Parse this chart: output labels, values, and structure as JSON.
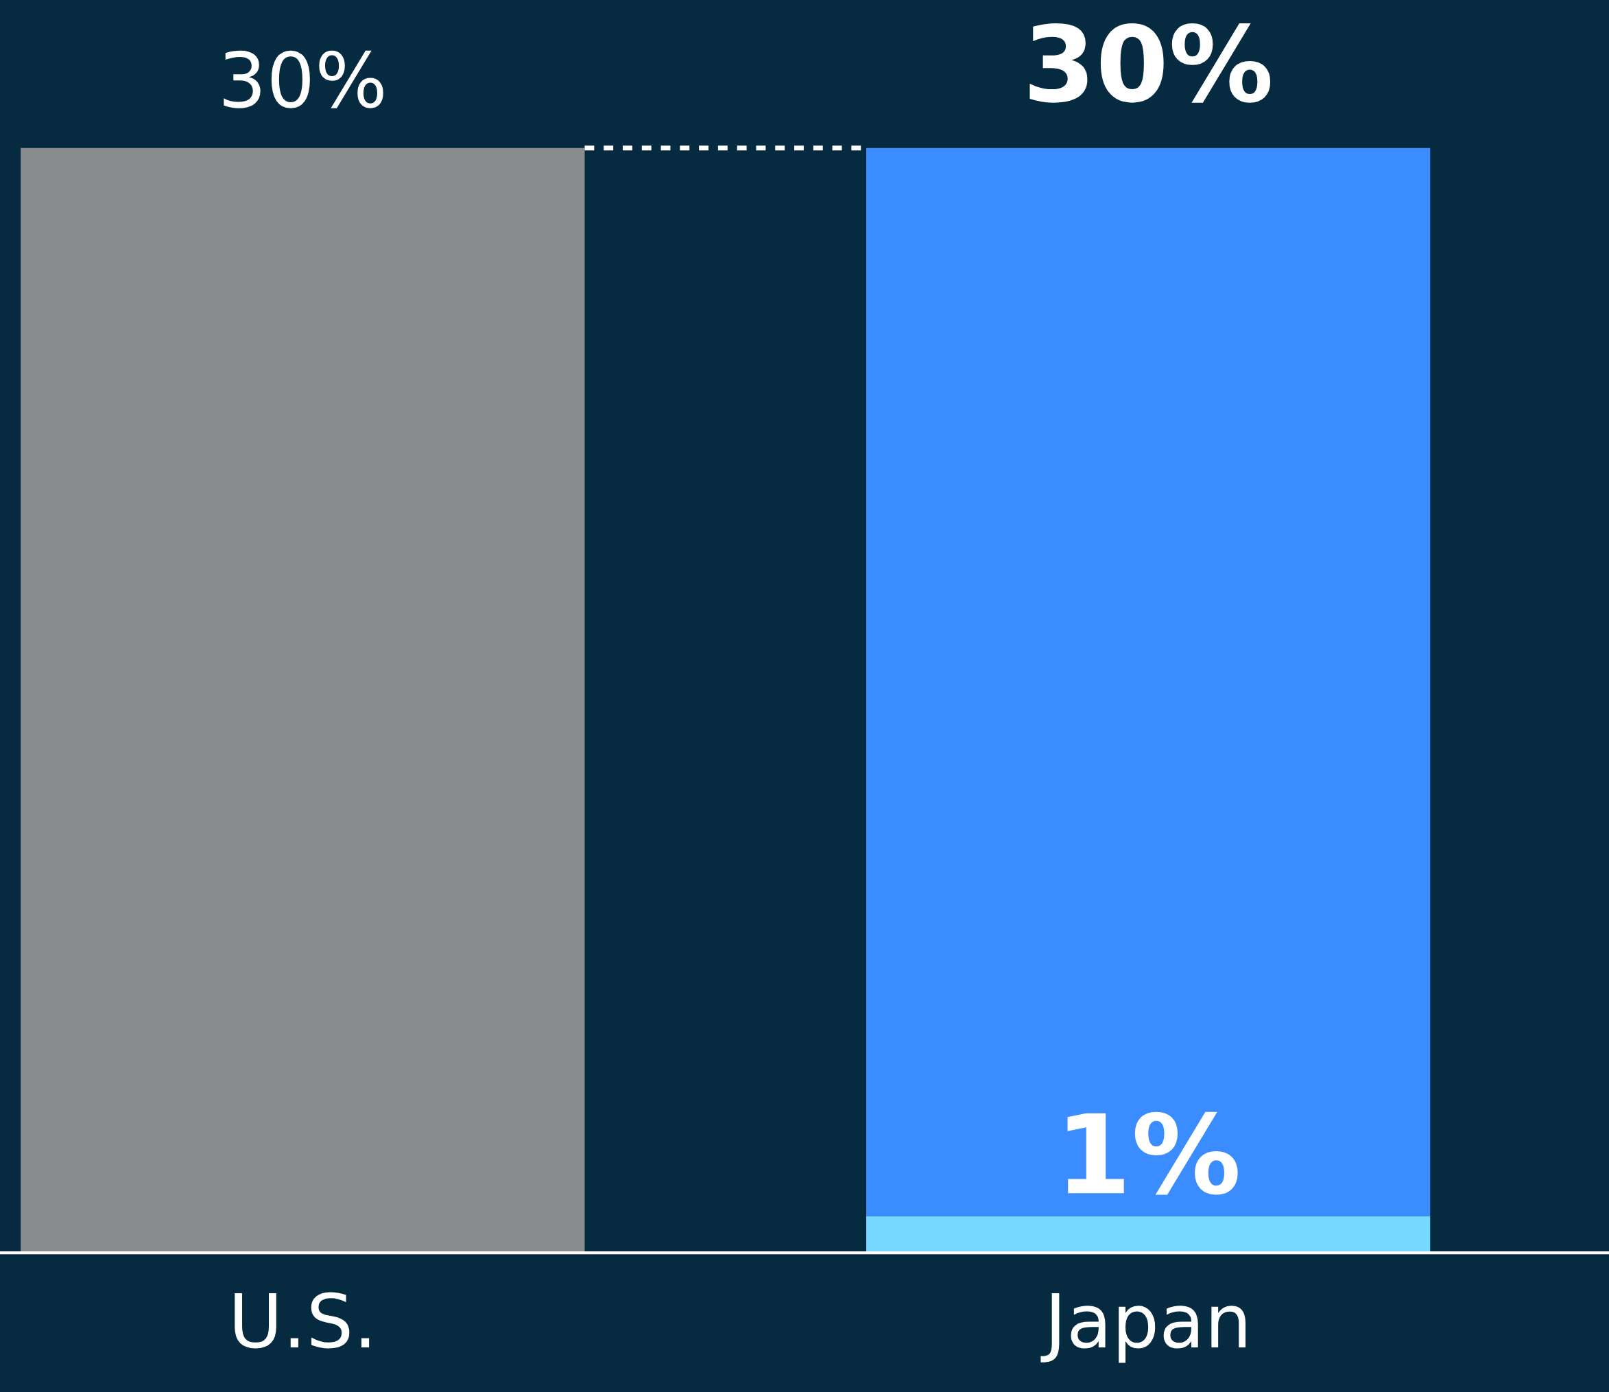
{
  "chart_data": {
    "type": "bar",
    "stacked": true,
    "categories": [
      "U.S.",
      "Japan"
    ],
    "series": [
      {
        "color": "#8a8d90",
        "values": [
          30,
          null
        ]
      },
      {
        "color": "#77d8ff",
        "values": [
          null,
          1
        ],
        "value_labels": [
          null,
          "1%"
        ]
      },
      {
        "color": "#3a8cff",
        "values": [
          null,
          29
        ]
      }
    ],
    "totals": [
      "30%",
      "30%"
    ],
    "ref_lines": [
      {
        "axis": "y",
        "value": 30,
        "line_style": "dashed",
        "color": "#ffffff"
      }
    ],
    "grid": false,
    "legend": false
  }
}
